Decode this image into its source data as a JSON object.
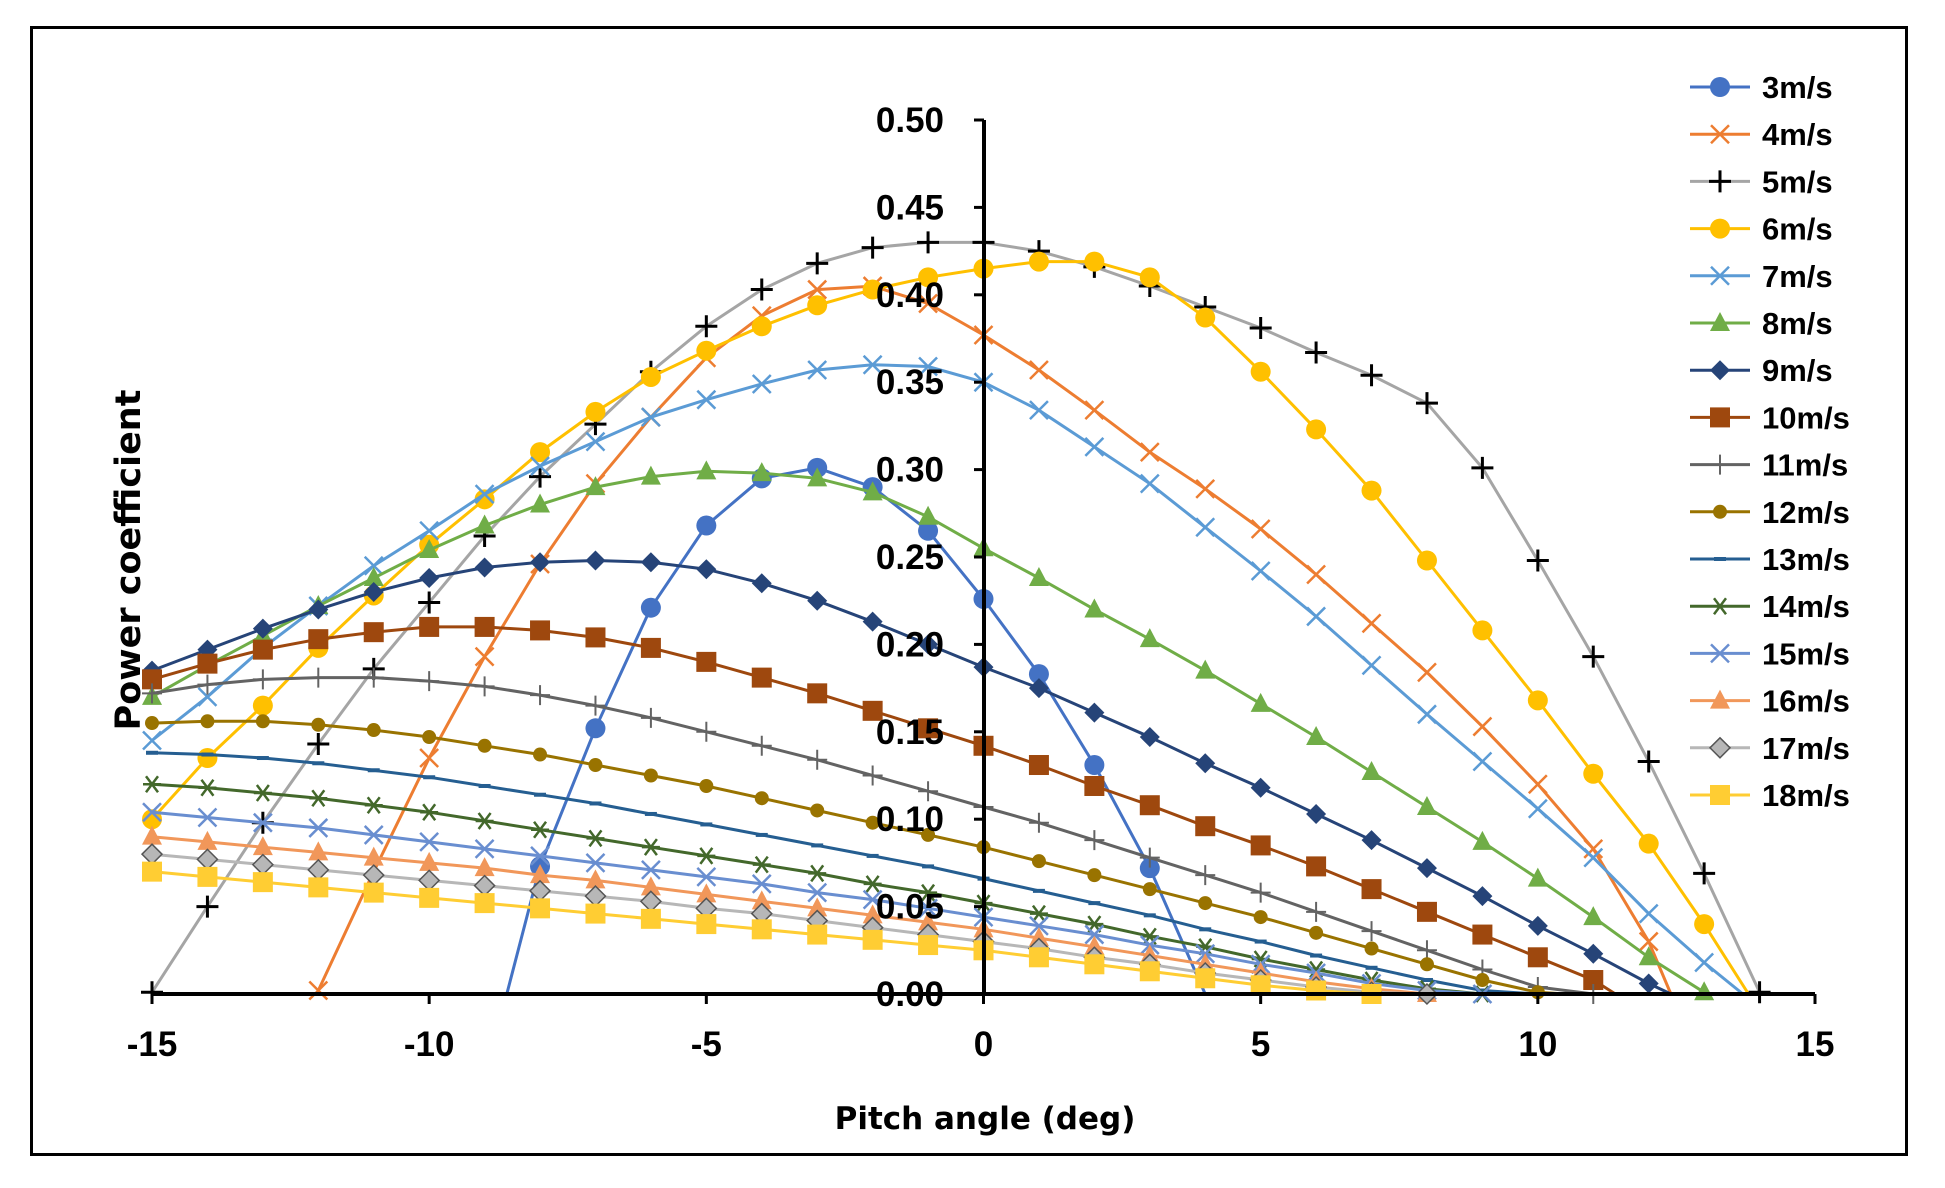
{
  "chart_data": {
    "type": "line",
    "title": "",
    "xlabel": "Pitch angle (deg)",
    "ylabel": "Power coefficient",
    "xlim": [
      -15,
      15
    ],
    "ylim": [
      0,
      0.5
    ],
    "x_ticks": [
      "-15",
      "-10",
      "-5",
      "0",
      "5",
      "10",
      "15"
    ],
    "y_ticks": [
      "0.00",
      "0.05",
      "0.10",
      "0.15",
      "0.20",
      "0.25",
      "0.30",
      "0.35",
      "0.40",
      "0.45",
      "0.50"
    ],
    "legend_position": "right",
    "series": [
      {
        "name": "3m/s",
        "color": "#4472C4",
        "marker": "circle",
        "x": [
          -8.6,
          -8,
          -7,
          -6,
          -5,
          -4,
          -3,
          -2,
          -1,
          0,
          1,
          2,
          3,
          4
        ],
        "y": [
          0.0,
          0.073,
          0.152,
          0.221,
          0.268,
          0.295,
          0.301,
          0.29,
          0.265,
          0.226,
          0.183,
          0.131,
          0.072,
          0.0
        ],
        "marked": [
          false,
          true,
          true,
          true,
          true,
          true,
          true,
          true,
          true,
          true,
          true,
          true,
          true,
          false
        ]
      },
      {
        "name": "4m/s",
        "color": "#ED7D31",
        "marker": "x",
        "x": [
          -12,
          -11,
          -10,
          -9,
          -8,
          -7,
          -6,
          -5,
          -4,
          -3,
          -2,
          -1,
          0,
          1,
          2,
          3,
          4,
          5,
          6,
          7,
          8,
          9,
          10,
          11,
          12,
          12.4
        ],
        "y": [
          0.002,
          0.07,
          0.135,
          0.193,
          0.246,
          0.292,
          0.33,
          0.364,
          0.388,
          0.403,
          0.405,
          0.395,
          0.377,
          0.357,
          0.334,
          0.31,
          0.289,
          0.266,
          0.24,
          0.212,
          0.184,
          0.153,
          0.12,
          0.083,
          0.03,
          0.0
        ],
        "marked": [
          true,
          false,
          true,
          true,
          true,
          true,
          true,
          true,
          true,
          true,
          true,
          true,
          true,
          true,
          true,
          true,
          true,
          true,
          true,
          true,
          true,
          true,
          true,
          true,
          true,
          false
        ]
      },
      {
        "name": "5m/s",
        "color": "#A5A5A5",
        "marker": "plus-black",
        "x": [
          -15,
          -14,
          -13,
          -12,
          -11,
          -10,
          -9,
          -8,
          -7,
          -6,
          -5,
          -4,
          -3,
          -2,
          -1,
          0,
          1,
          2,
          3,
          4,
          5,
          6,
          7,
          8,
          9,
          10,
          11,
          12,
          13,
          14
        ],
        "y": [
          0.001,
          0.05,
          0.098,
          0.143,
          0.186,
          0.224,
          0.262,
          0.296,
          0.326,
          0.356,
          0.382,
          0.403,
          0.418,
          0.427,
          0.43,
          0.43,
          0.425,
          0.416,
          0.405,
          0.393,
          0.381,
          0.367,
          0.354,
          0.338,
          0.301,
          0.248,
          0.193,
          0.133,
          0.069,
          0.001
        ]
      },
      {
        "name": "6m/s",
        "color": "#FFC000",
        "marker": "circle",
        "x": [
          -15,
          -14,
          -13,
          -12,
          -11,
          -10,
          -9,
          -8,
          -7,
          -6,
          -5,
          -4,
          -3,
          -2,
          -1,
          0,
          1,
          2,
          3,
          4,
          5,
          6,
          7,
          8,
          9,
          10,
          11,
          12,
          13,
          13.8
        ],
        "y": [
          0.1,
          0.135,
          0.165,
          0.198,
          0.228,
          0.257,
          0.283,
          0.31,
          0.333,
          0.353,
          0.368,
          0.382,
          0.394,
          0.403,
          0.41,
          0.415,
          0.419,
          0.419,
          0.41,
          0.387,
          0.356,
          0.323,
          0.288,
          0.248,
          0.208,
          0.168,
          0.126,
          0.086,
          0.04,
          0.0
        ],
        "marked": [
          true,
          true,
          true,
          true,
          true,
          true,
          true,
          true,
          true,
          true,
          true,
          true,
          true,
          true,
          true,
          true,
          true,
          true,
          true,
          true,
          true,
          true,
          true,
          true,
          true,
          true,
          true,
          true,
          true,
          false
        ]
      },
      {
        "name": "7m/s",
        "color": "#5B9BD5",
        "marker": "x",
        "x": [
          -15,
          -14,
          -13,
          -12,
          -11,
          -10,
          -9,
          -8,
          -7,
          -6,
          -5,
          -4,
          -3,
          -2,
          -1,
          0,
          1,
          2,
          3,
          4,
          5,
          6,
          7,
          8,
          9,
          10,
          11,
          12,
          13,
          13.7
        ],
        "y": [
          0.145,
          0.17,
          0.198,
          0.222,
          0.245,
          0.265,
          0.286,
          0.302,
          0.316,
          0.33,
          0.34,
          0.349,
          0.357,
          0.36,
          0.359,
          0.35,
          0.334,
          0.313,
          0.292,
          0.267,
          0.242,
          0.216,
          0.188,
          0.16,
          0.133,
          0.106,
          0.078,
          0.046,
          0.018,
          0.0
        ],
        "marked": [
          true,
          true,
          true,
          true,
          true,
          true,
          true,
          true,
          true,
          true,
          true,
          true,
          true,
          true,
          true,
          true,
          true,
          true,
          true,
          true,
          true,
          true,
          true,
          true,
          true,
          true,
          true,
          true,
          true,
          false
        ]
      },
      {
        "name": "8m/s",
        "color": "#70AD47",
        "marker": "triangle",
        "x": [
          -15,
          -14,
          -13,
          -12,
          -11,
          -10,
          -9,
          -8,
          -7,
          -6,
          -5,
          -4,
          -3,
          -2,
          -1,
          0,
          1,
          2,
          3,
          4,
          5,
          6,
          7,
          8,
          9,
          10,
          11,
          12,
          13
        ],
        "y": [
          0.17,
          0.188,
          0.205,
          0.222,
          0.238,
          0.254,
          0.268,
          0.28,
          0.29,
          0.296,
          0.299,
          0.298,
          0.295,
          0.287,
          0.273,
          0.255,
          0.238,
          0.22,
          0.203,
          0.185,
          0.166,
          0.147,
          0.127,
          0.107,
          0.087,
          0.066,
          0.044,
          0.021,
          0.001
        ]
      },
      {
        "name": "9m/s",
        "color": "#264478",
        "marker": "diamond",
        "x": [
          -15,
          -14,
          -13,
          -12,
          -11,
          -10,
          -9,
          -8,
          -7,
          -6,
          -5,
          -4,
          -3,
          -2,
          -1,
          0,
          1,
          2,
          3,
          4,
          5,
          6,
          7,
          8,
          9,
          10,
          11,
          12,
          12.4
        ],
        "y": [
          0.185,
          0.197,
          0.209,
          0.22,
          0.23,
          0.238,
          0.244,
          0.247,
          0.248,
          0.247,
          0.243,
          0.235,
          0.225,
          0.213,
          0.2,
          0.187,
          0.175,
          0.161,
          0.147,
          0.132,
          0.118,
          0.103,
          0.088,
          0.072,
          0.056,
          0.039,
          0.023,
          0.006,
          0.0
        ],
        "marked": [
          true,
          true,
          true,
          true,
          true,
          true,
          true,
          true,
          true,
          true,
          true,
          true,
          true,
          true,
          true,
          true,
          true,
          true,
          true,
          true,
          true,
          true,
          true,
          true,
          true,
          true,
          true,
          true,
          false
        ]
      },
      {
        "name": "10m/s",
        "color": "#9E480E",
        "marker": "square",
        "x": [
          -15,
          -14,
          -13,
          -12,
          -11,
          -10,
          -9,
          -8,
          -7,
          -6,
          -5,
          -4,
          -3,
          -2,
          -1,
          0,
          1,
          2,
          3,
          4,
          5,
          6,
          7,
          8,
          9,
          10,
          11,
          11.4
        ],
        "y": [
          0.18,
          0.189,
          0.197,
          0.203,
          0.207,
          0.21,
          0.21,
          0.208,
          0.204,
          0.198,
          0.19,
          0.181,
          0.172,
          0.162,
          0.152,
          0.142,
          0.131,
          0.119,
          0.108,
          0.096,
          0.085,
          0.073,
          0.06,
          0.047,
          0.034,
          0.021,
          0.008,
          0.0
        ],
        "marked": [
          true,
          true,
          true,
          true,
          true,
          true,
          true,
          true,
          true,
          true,
          true,
          true,
          true,
          true,
          true,
          true,
          true,
          true,
          true,
          true,
          true,
          true,
          true,
          true,
          true,
          true,
          true,
          false
        ]
      },
      {
        "name": "11m/s",
        "color": "#636363",
        "marker": "plus-gray",
        "x": [
          -15,
          -14,
          -13,
          -12,
          -11,
          -10,
          -9,
          -8,
          -7,
          -6,
          -5,
          -4,
          -3,
          -2,
          -1,
          0,
          1,
          2,
          3,
          4,
          5,
          6,
          7,
          8,
          9,
          10,
          11
        ],
        "y": [
          0.172,
          0.177,
          0.18,
          0.181,
          0.181,
          0.179,
          0.176,
          0.171,
          0.165,
          0.158,
          0.15,
          0.142,
          0.134,
          0.125,
          0.116,
          0.107,
          0.098,
          0.088,
          0.078,
          0.068,
          0.058,
          0.047,
          0.036,
          0.025,
          0.014,
          0.004,
          0.0
        ]
      },
      {
        "name": "12m/s",
        "color": "#997300",
        "marker": "circle-small",
        "x": [
          -15,
          -14,
          -13,
          -12,
          -11,
          -10,
          -9,
          -8,
          -7,
          -6,
          -5,
          -4,
          -3,
          -2,
          -1,
          0,
          1,
          2,
          3,
          4,
          5,
          6,
          7,
          8,
          9,
          10,
          10.5
        ],
        "y": [
          0.155,
          0.156,
          0.156,
          0.154,
          0.151,
          0.147,
          0.142,
          0.137,
          0.131,
          0.125,
          0.119,
          0.112,
          0.105,
          0.098,
          0.091,
          0.084,
          0.076,
          0.068,
          0.06,
          0.052,
          0.044,
          0.035,
          0.026,
          0.017,
          0.008,
          0.001,
          0.0
        ],
        "marked": [
          true,
          true,
          true,
          true,
          true,
          true,
          true,
          true,
          true,
          true,
          true,
          true,
          true,
          true,
          true,
          true,
          true,
          true,
          true,
          true,
          true,
          true,
          true,
          true,
          true,
          true,
          false
        ]
      },
      {
        "name": "13m/s",
        "color": "#255E91",
        "marker": "dash",
        "x": [
          -15,
          -14,
          -13,
          -12,
          -11,
          -10,
          -9,
          -8,
          -7,
          -6,
          -5,
          -4,
          -3,
          -2,
          -1,
          0,
          1,
          2,
          3,
          4,
          5,
          6,
          7,
          8,
          9,
          10
        ],
        "y": [
          0.138,
          0.137,
          0.135,
          0.132,
          0.128,
          0.124,
          0.119,
          0.114,
          0.109,
          0.103,
          0.097,
          0.091,
          0.085,
          0.079,
          0.073,
          0.066,
          0.059,
          0.052,
          0.045,
          0.037,
          0.03,
          0.022,
          0.015,
          0.008,
          0.002,
          0.0
        ]
      },
      {
        "name": "14m/s",
        "color": "#43682B",
        "marker": "star",
        "x": [
          -15,
          -14,
          -13,
          -12,
          -11,
          -10,
          -9,
          -8,
          -7,
          -6,
          -5,
          -4,
          -3,
          -2,
          -1,
          0,
          1,
          2,
          3,
          4,
          5,
          6,
          7,
          8,
          9
        ],
        "y": [
          0.12,
          0.118,
          0.115,
          0.112,
          0.108,
          0.104,
          0.099,
          0.094,
          0.089,
          0.084,
          0.079,
          0.074,
          0.069,
          0.063,
          0.058,
          0.052,
          0.046,
          0.04,
          0.033,
          0.027,
          0.02,
          0.014,
          0.008,
          0.003,
          0.0
        ]
      },
      {
        "name": "15m/s",
        "color": "#698ED0",
        "marker": "x",
        "x": [
          -15,
          -14,
          -13,
          -12,
          -11,
          -10,
          -9,
          -8,
          -7,
          -6,
          -5,
          -4,
          -3,
          -2,
          -1,
          0,
          1,
          2,
          3,
          4,
          5,
          6,
          7,
          8,
          9
        ],
        "y": [
          0.104,
          0.101,
          0.098,
          0.095,
          0.091,
          0.087,
          0.083,
          0.079,
          0.075,
          0.071,
          0.067,
          0.063,
          0.058,
          0.054,
          0.049,
          0.044,
          0.039,
          0.034,
          0.028,
          0.023,
          0.017,
          0.012,
          0.006,
          0.002,
          0.0
        ]
      },
      {
        "name": "16m/s",
        "color": "#F1975A",
        "marker": "triangle",
        "x": [
          -15,
          -14,
          -13,
          -12,
          -11,
          -10,
          -9,
          -8,
          -7,
          -6,
          -5,
          -4,
          -3,
          -2,
          -1,
          0,
          1,
          2,
          3,
          4,
          5,
          6,
          7,
          8
        ],
        "y": [
          0.09,
          0.087,
          0.084,
          0.081,
          0.078,
          0.075,
          0.072,
          0.068,
          0.065,
          0.061,
          0.057,
          0.053,
          0.049,
          0.045,
          0.041,
          0.037,
          0.032,
          0.027,
          0.022,
          0.017,
          0.012,
          0.007,
          0.003,
          0.0
        ]
      },
      {
        "name": "17m/s",
        "color": "#B7B7B7",
        "marker": "diamond",
        "x": [
          -15,
          -14,
          -13,
          -12,
          -11,
          -10,
          -9,
          -8,
          -7,
          -6,
          -5,
          -4,
          -3,
          -2,
          -1,
          0,
          1,
          2,
          3,
          4,
          5,
          6,
          7,
          8
        ],
        "y": [
          0.08,
          0.077,
          0.074,
          0.071,
          0.068,
          0.065,
          0.062,
          0.059,
          0.056,
          0.053,
          0.049,
          0.046,
          0.042,
          0.038,
          0.034,
          0.03,
          0.026,
          0.021,
          0.017,
          0.012,
          0.008,
          0.004,
          0.001,
          0.0
        ]
      },
      {
        "name": "18m/s",
        "color": "#FFCD33",
        "marker": "square",
        "x": [
          -15,
          -14,
          -13,
          -12,
          -11,
          -10,
          -9,
          -8,
          -7,
          -6,
          -5,
          -4,
          -3,
          -2,
          -1,
          0,
          1,
          2,
          3,
          4,
          5,
          6,
          7
        ],
        "y": [
          0.07,
          0.067,
          0.064,
          0.061,
          0.058,
          0.055,
          0.052,
          0.049,
          0.046,
          0.043,
          0.04,
          0.037,
          0.034,
          0.031,
          0.028,
          0.025,
          0.021,
          0.017,
          0.013,
          0.009,
          0.005,
          0.002,
          0.0
        ]
      }
    ]
  }
}
